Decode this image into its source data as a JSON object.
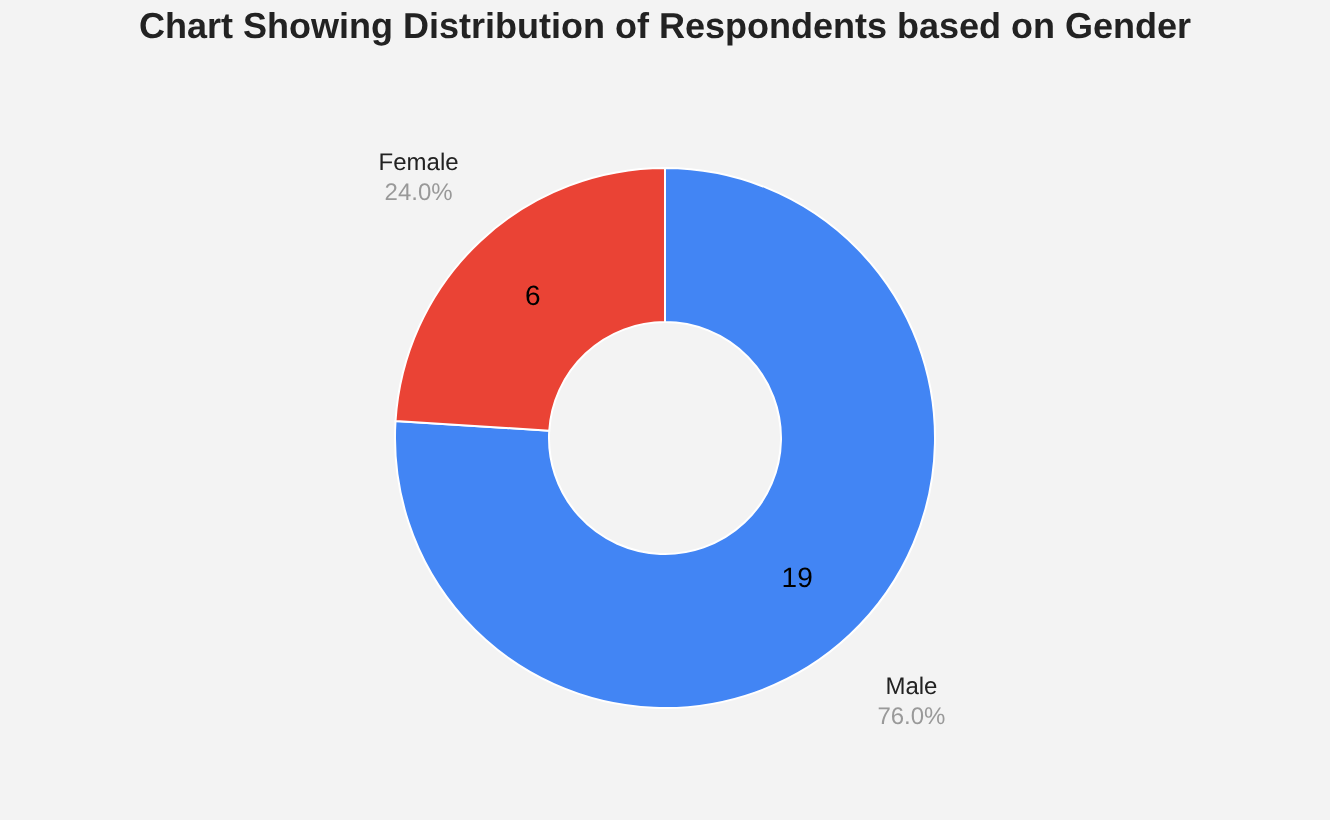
{
  "chart_data": {
    "type": "donut",
    "title": "Chart Showing Distribution of Respondents based on Gender",
    "categories": [
      "Male",
      "Female"
    ],
    "values": [
      19,
      6
    ],
    "colors": [
      "#4285f4",
      "#ea4335"
    ],
    "data_labels": true,
    "annotations": [
      "76.0%",
      "24.0%"
    ],
    "legend": false
  }
}
